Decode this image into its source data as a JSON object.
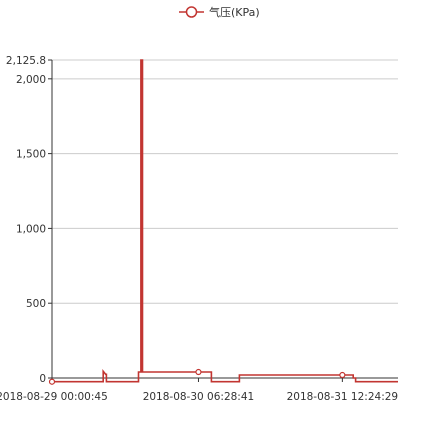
{
  "legend": {
    "label": "气压(KPa)"
  },
  "colors": {
    "series": "#c23531",
    "axis": "#333333",
    "grid": "#cccccc",
    "text": "#333333"
  },
  "chart_data": {
    "type": "line",
    "line_style": "step",
    "title": "",
    "xlabel": "",
    "ylabel": "",
    "x_ticks": [
      "2018-08-29 00:00:45",
      "2018-08-30 06:28:41",
      "2018-08-31 12:24:29"
    ],
    "y_ticks": [
      "0",
      "500",
      "1,000",
      "1,500",
      "2,000",
      "2,125.8"
    ],
    "ylim": [
      0,
      2125.8
    ],
    "grid": true,
    "legend_position": "top-center",
    "series": [
      {
        "name": "气压(KPa)",
        "x": [
          "2018-08-29 00:00:45",
          "2018-08-29 10:40:00",
          "2018-08-29 10:40:00",
          "2018-08-29 11:10:00",
          "2018-08-29 11:20:00",
          "2018-08-29 11:20:00",
          "2018-08-29 18:00:00",
          "2018-08-29 18:00:00",
          "2018-08-29 18:30:00",
          "2018-08-29 18:30:00",
          "2018-08-29 18:50:00",
          "2018-08-29 18:50:00",
          "2018-08-30 06:28:41",
          "2018-08-30 09:10:00",
          "2018-08-30 09:10:00",
          "2018-08-30 15:00:00",
          "2018-08-30 15:00:00",
          "2018-08-31 12:24:29",
          "2018-08-31 14:40:00",
          "2018-08-31 14:40:00",
          "2018-08-31 15:10:00",
          "2018-08-31 15:10:00",
          "2018-08-31 23:59:00"
        ],
        "values": [
          -25,
          -25,
          45,
          25,
          25,
          -25,
          -25,
          40,
          40,
          2125.8,
          2125.8,
          40,
          40,
          40,
          -25,
          -25,
          20,
          20,
          20,
          0,
          0,
          -25,
          -25
        ],
        "markers": [
          {
            "x": "2018-08-29 00:00:45",
            "y": -25
          },
          {
            "x": "2018-08-30 06:28:41",
            "y": 40
          },
          {
            "x": "2018-08-31 12:24:29",
            "y": 20
          }
        ]
      }
    ]
  }
}
